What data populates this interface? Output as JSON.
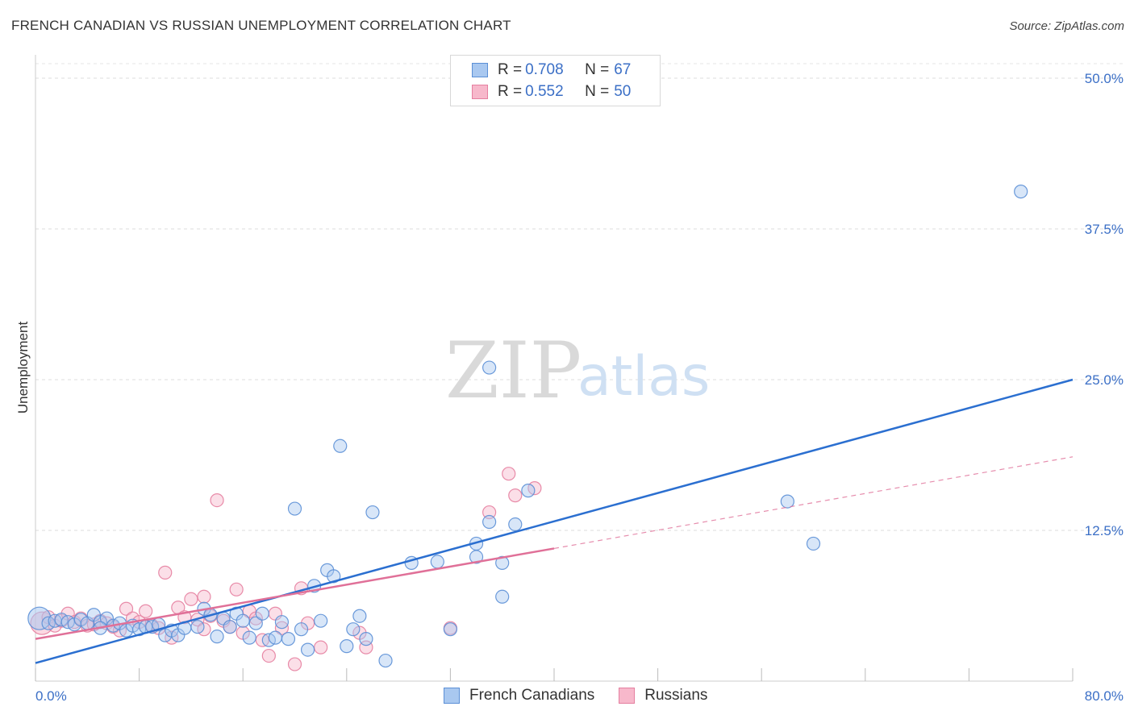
{
  "title": "FRENCH CANADIAN VS RUSSIAN UNEMPLOYMENT CORRELATION CHART",
  "source": "Source: ZipAtlas.com",
  "watermark": {
    "zip": "ZIP",
    "atlas": "atlas"
  },
  "legend": {
    "r_label": "R =",
    "n_label": "N =",
    "rows": [
      {
        "name": "French Canadians",
        "r": "0.708",
        "n": "67"
      },
      {
        "name": "Russians",
        "r": "0.552",
        "n": "50"
      }
    ]
  },
  "colors": {
    "blue_fill": "#a9c8f0",
    "blue_stroke": "#5b8fd6",
    "blue_line": "#2b6fd0",
    "pink_fill": "#f7b8cb",
    "pink_stroke": "#e57fa0",
    "pink_line": "#e07098",
    "tick_text": "#3b6fc6"
  },
  "chart_data": {
    "type": "scatter",
    "title": "FRENCH CANADIAN VS RUSSIAN UNEMPLOYMENT CORRELATION CHART",
    "xlabel": "",
    "ylabel": "Unemployment",
    "xlim": [
      0,
      80
    ],
    "ylim": [
      0,
      52
    ],
    "x_tick_labels": [
      "0.0%",
      "80.0%"
    ],
    "y_ticks": [
      12.5,
      25.0,
      37.5,
      50.0
    ],
    "y_tick_labels": [
      "12.5%",
      "25.0%",
      "37.5%",
      "50.0%"
    ],
    "grid": true,
    "series": [
      {
        "name": "French Canadians",
        "color": "blue",
        "r": 0.708,
        "n": 67,
        "trend": {
          "x0": 0,
          "y0": 1.5,
          "x1": 80,
          "y1": 25.0
        },
        "points": [
          [
            0.3,
            5.2
          ],
          [
            1.0,
            4.8
          ],
          [
            1.5,
            5.0
          ],
          [
            2.0,
            5.1
          ],
          [
            2.5,
            4.9
          ],
          [
            3.0,
            4.7
          ],
          [
            3.5,
            5.1
          ],
          [
            4.0,
            4.8
          ],
          [
            4.5,
            5.5
          ],
          [
            5.0,
            4.9
          ],
          [
            5.5,
            5.2
          ],
          [
            6.0,
            4.6
          ],
          [
            6.5,
            4.8
          ],
          [
            7.0,
            4.2
          ],
          [
            7.5,
            4.6
          ],
          [
            8.0,
            4.3
          ],
          [
            8.5,
            4.5
          ],
          [
            9.0,
            4.5
          ],
          [
            9.5,
            4.7
          ],
          [
            10.0,
            3.8
          ],
          [
            10.5,
            4.2
          ],
          [
            11.0,
            3.8
          ],
          [
            11.5,
            4.4
          ],
          [
            12.5,
            4.5
          ],
          [
            13.0,
            6.0
          ],
          [
            13.5,
            5.5
          ],
          [
            14.0,
            3.7
          ],
          [
            14.5,
            5.2
          ],
          [
            15.0,
            4.5
          ],
          [
            15.5,
            5.6
          ],
          [
            16.0,
            5.0
          ],
          [
            16.5,
            3.6
          ],
          [
            17.0,
            4.8
          ],
          [
            17.5,
            5.6
          ],
          [
            18.0,
            3.4
          ],
          [
            18.5,
            3.6
          ],
          [
            19.0,
            4.9
          ],
          [
            19.5,
            3.5
          ],
          [
            20.0,
            14.3
          ],
          [
            20.5,
            4.3
          ],
          [
            21.0,
            2.6
          ],
          [
            21.5,
            7.9
          ],
          [
            22.0,
            5.0
          ],
          [
            22.5,
            9.2
          ],
          [
            23.0,
            8.7
          ],
          [
            23.5,
            19.5
          ],
          [
            24.0,
            2.9
          ],
          [
            24.5,
            4.3
          ],
          [
            25.0,
            5.4
          ],
          [
            25.5,
            3.5
          ],
          [
            26.0,
            14.0
          ],
          [
            27.0,
            1.7
          ],
          [
            29.0,
            9.8
          ],
          [
            31.0,
            9.9
          ],
          [
            32.0,
            4.3
          ],
          [
            34.0,
            10.3
          ],
          [
            34.0,
            11.4
          ],
          [
            35.0,
            13.2
          ],
          [
            36.0,
            7.0
          ],
          [
            36.0,
            9.8
          ],
          [
            37.0,
            13.0
          ],
          [
            38.0,
            15.8
          ],
          [
            35.0,
            26.0
          ],
          [
            58.0,
            14.9
          ],
          [
            60.0,
            11.4
          ],
          [
            76.0,
            40.6
          ],
          [
            5.0,
            4.4
          ]
        ]
      },
      {
        "name": "Russians",
        "color": "pink",
        "r": 0.552,
        "n": 50,
        "trend": {
          "x0": 0,
          "y0": 3.5,
          "x1": 40,
          "y1": 11.0
        },
        "trend_ext": {
          "x0": 40,
          "y0": 11.0,
          "x1": 80,
          "y1": 18.6
        },
        "points": [
          [
            0.5,
            4.8
          ],
          [
            1.0,
            5.3
          ],
          [
            1.5,
            4.6
          ],
          [
            2.0,
            5.0
          ],
          [
            2.5,
            5.6
          ],
          [
            3.0,
            4.9
          ],
          [
            3.5,
            5.2
          ],
          [
            4.0,
            4.6
          ],
          [
            4.5,
            4.7
          ],
          [
            5.0,
            5.0
          ],
          [
            5.5,
            4.8
          ],
          [
            6.0,
            4.5
          ],
          [
            6.5,
            4.2
          ],
          [
            7.0,
            6.0
          ],
          [
            7.5,
            5.2
          ],
          [
            8.0,
            4.9
          ],
          [
            8.5,
            5.8
          ],
          [
            9.0,
            4.6
          ],
          [
            9.5,
            4.4
          ],
          [
            10.0,
            9.0
          ],
          [
            10.5,
            3.6
          ],
          [
            11.0,
            6.1
          ],
          [
            11.5,
            5.3
          ],
          [
            12.0,
            6.8
          ],
          [
            12.5,
            5.1
          ],
          [
            13.0,
            7.0
          ],
          [
            13.5,
            5.4
          ],
          [
            14.0,
            15.0
          ],
          [
            14.5,
            5.0
          ],
          [
            15.0,
            4.5
          ],
          [
            15.5,
            7.6
          ],
          [
            16.0,
            4.0
          ],
          [
            16.5,
            5.8
          ],
          [
            17.0,
            5.2
          ],
          [
            17.5,
            3.4
          ],
          [
            18.0,
            2.1
          ],
          [
            18.5,
            5.6
          ],
          [
            19.0,
            4.4
          ],
          [
            20.0,
            1.4
          ],
          [
            20.5,
            7.7
          ],
          [
            21.0,
            4.8
          ],
          [
            22.0,
            2.8
          ],
          [
            25.0,
            4.0
          ],
          [
            25.5,
            2.8
          ],
          [
            32.0,
            4.4
          ],
          [
            35.0,
            14.0
          ],
          [
            36.5,
            17.2
          ],
          [
            37.0,
            15.4
          ],
          [
            38.5,
            16.0
          ],
          [
            13.0,
            4.3
          ]
        ]
      }
    ]
  },
  "bottom_legend": [
    "French Canadians",
    "Russians"
  ]
}
